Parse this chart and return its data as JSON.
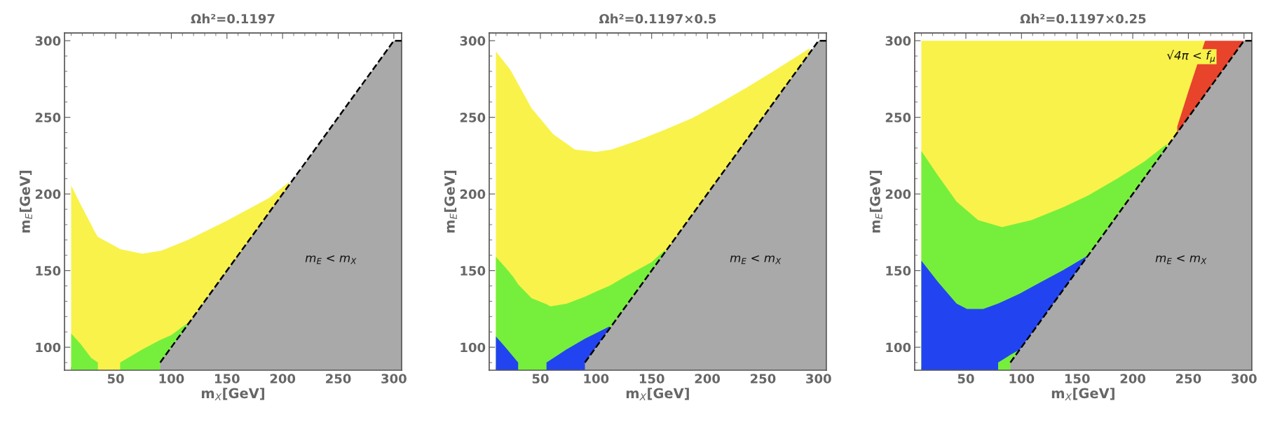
{
  "chart_data": [
    {
      "type": "area",
      "title": "Ωh²=0.1197",
      "xlabel": "m$_{X}$[GeV]",
      "ylabel": "m$_{E}$[GeV]",
      "xlim": [
        4,
        307
      ],
      "ylim": [
        85,
        305
      ],
      "xticks": [
        50,
        100,
        150,
        200,
        250,
        300
      ],
      "yticks": [
        100,
        150,
        200,
        250,
        300
      ],
      "series": [
        {
          "color": "#f9f24a",
          "x": [
            10,
            18.6,
            28,
            30.7,
            34,
            50,
            54,
            74,
            91,
            115,
            151,
            188,
            206
          ],
          "values": [
            205.5,
            193,
            180,
            176,
            172,
            165.7,
            164,
            161,
            163,
            170,
            183,
            197.5,
            208
          ]
        },
        {
          "color": "#76ef3c",
          "x": [
            10,
            18.6,
            28,
            34
          ],
          "values": [
            109,
            102,
            93,
            90
          ]
        },
        {
          "color": "#76ef3c",
          "x": [
            54,
            74,
            90,
            100,
            115
          ],
          "values": [
            90,
            98.6,
            104.8,
            108,
            116
          ]
        },
        {
          "color": "#a9a9a9",
          "line_style": "dashed",
          "x": [
            90,
            300,
            307
          ],
          "values": [
            90,
            300,
            300
          ]
        }
      ],
      "annotations": [
        "m$_{E}$ < m$_{X}$"
      ]
    },
    {
      "type": "area",
      "title": "Ωh²=0.1197×0.5",
      "xlabel": "m$_{X}$[GeV]",
      "ylabel": "m$_{E}$[GeV]",
      "xlim": [
        4,
        307
      ],
      "ylim": [
        85,
        305
      ],
      "xticks": [
        50,
        100,
        150,
        200,
        250,
        300
      ],
      "yticks": [
        100,
        150,
        200,
        250,
        300
      ],
      "series": [
        {
          "color": "#f9f24a",
          "x": [
            10,
            23,
            42,
            61.5,
            81,
            100,
            114,
            138,
            162,
            186.5,
            210.5,
            234.5,
            258.5,
            292
          ],
          "values": [
            293,
            281,
            256,
            239,
            229,
            227.5,
            229,
            235,
            242,
            249.5,
            259,
            269,
            279.6,
            295
          ]
        },
        {
          "color": "#76ef3c",
          "x": [
            10,
            18.6,
            25.5,
            30,
            42,
            55.5,
            59,
            73.5,
            90,
            102,
            112,
            126,
            150,
            162
          ],
          "values": [
            159,
            152,
            146,
            141,
            132,
            128,
            126.7,
            128.4,
            133,
            137,
            140,
            146,
            155.6,
            163.5
          ]
        },
        {
          "color": "#2244f0",
          "x": [
            10,
            18.6,
            30
          ],
          "values": [
            107,
            100,
            90
          ]
        },
        {
          "color": "#2244f0",
          "x": [
            55.5,
            73.5,
            90,
            112
          ],
          "values": [
            90,
            98.6,
            105.6,
            113.5
          ]
        },
        {
          "color": "#a9a9a9",
          "line_style": "dashed",
          "x": [
            90,
            300,
            307
          ],
          "values": [
            90,
            300,
            300
          ]
        }
      ],
      "annotations": [
        "m$_{E}$ < m$_{X}$"
      ]
    },
    {
      "type": "area",
      "title": "Ωh²=0.1197×0.25",
      "xlabel": "m$_{X}$[GeV]",
      "ylabel": "m$_{E}$[GeV]",
      "xlim": [
        4,
        307
      ],
      "ylim": [
        85,
        305
      ],
      "xticks": [
        50,
        100,
        150,
        200,
        250,
        300
      ],
      "yticks": [
        100,
        150,
        200,
        250,
        300
      ],
      "series": [
        {
          "color": "#f9f24a",
          "x": [
            10,
            265
          ],
          "values": [
            300,
            300
          ]
        },
        {
          "color": "#e8432b",
          "x": [
            240,
            250.7,
            265,
            300
          ],
          "values": [
            244,
            268.5,
            300,
            300
          ]
        },
        {
          "color": "#76ef3c",
          "x": [
            10,
            25,
            41.6,
            61,
            82.5,
            109,
            138,
            160,
            186,
            210,
            230.5
          ],
          "values": [
            228,
            212,
            195,
            183,
            178.4,
            183,
            191.5,
            199,
            210,
            221,
            232.5
          ]
        },
        {
          "color": "#2244f0",
          "x": [
            10,
            25,
            41.6,
            51,
            65.6,
            79,
            89.7,
            98.5,
            113.7,
            137.7,
            160
          ],
          "values": [
            156.5,
            142.5,
            128.5,
            125,
            125,
            128.5,
            132,
            135,
            141,
            150.4,
            160
          ]
        },
        {
          "color": "#76ef3c",
          "x": [
            79,
            90,
            98.5
          ],
          "values": [
            90,
            95,
            98.5
          ]
        },
        {
          "color": "#a9a9a9",
          "line_style": "dashed",
          "x": [
            90,
            300,
            307
          ],
          "values": [
            90,
            300,
            300
          ]
        }
      ],
      "annotations": [
        "m$_{E}$ < m$_{X}$",
        "√4π < f$_{μ}$"
      ]
    }
  ]
}
